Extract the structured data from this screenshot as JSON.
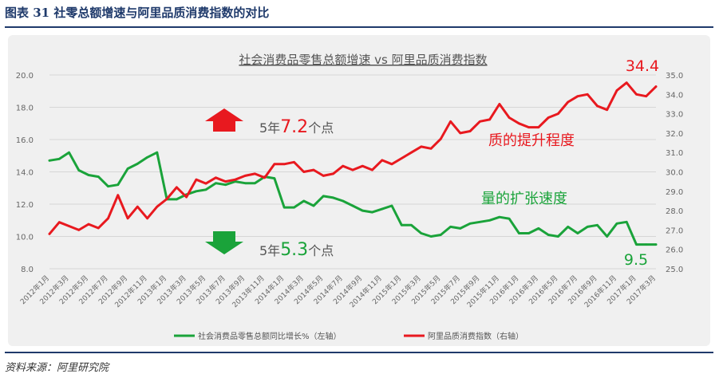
{
  "figure": {
    "title": "图表 31   社零总额增速与阿里品质消费指数的对比",
    "source": "资料来源：阿里研究院"
  },
  "chart_data": {
    "type": "line",
    "title": "社会消费品零售总额增速 vs 阿里品质消费指数",
    "x": [
      "2012年1月",
      "2012年2月",
      "2012年3月",
      "2012年4月",
      "2012年5月",
      "2012年6月",
      "2012年7月",
      "2012年8月",
      "2012年9月",
      "2012年10月",
      "2012年11月",
      "2012年12月",
      "2013年1月",
      "2013年2月",
      "2013年3月",
      "2013年4月",
      "2013年5月",
      "2013年6月",
      "2013年7月",
      "2013年8月",
      "2013年9月",
      "2013年10月",
      "2013年11月",
      "2013年12月",
      "2014年1月",
      "2014年2月",
      "2014年3月",
      "2014年4月",
      "2014年5月",
      "2014年6月",
      "2014年7月",
      "2014年8月",
      "2014年9月",
      "2014年10月",
      "2014年11月",
      "2014年12月",
      "2015年1月",
      "2015年2月",
      "2015年3月",
      "2015年4月",
      "2015年5月",
      "2015年6月",
      "2015年7月",
      "2015年8月",
      "2015年9月",
      "2015年10月",
      "2015年11月",
      "2015年12月",
      "2016年1月",
      "2016年2月",
      "2016年3月",
      "2016年4月",
      "2016年5月",
      "2016年6月",
      "2016年7月",
      "2016年8月",
      "2016年9月",
      "2016年10月",
      "2016年11月",
      "2016年12月",
      "2017年1月",
      "2017年2月",
      "2017年3月"
    ],
    "x_tick_labels": [
      "2012年1月",
      "2012年3月",
      "2012年5月",
      "2012年7月",
      "2012年9月",
      "2012年11月",
      "2013年1月",
      "2013年3月",
      "2013年5月",
      "2013年7月",
      "2013年9月",
      "2013年11月",
      "2014年1月",
      "2014年3月",
      "2014年5月",
      "2014年7月",
      "2014年9月",
      "2014年11月",
      "2015年1月",
      "2015年3月",
      "2015年5月",
      "2015年7月",
      "2015年9月",
      "2015年11月",
      "2016年1月",
      "2016年3月",
      "2016年5月",
      "2016年7月",
      "2016年9月",
      "2016年11月",
      "2017年1月",
      "2017年3月"
    ],
    "y_left": {
      "ylim": [
        8.0,
        20.0
      ],
      "ticks": [
        "8.0",
        "10.0",
        "12.0",
        "14.0",
        "16.0",
        "18.0",
        "20.0"
      ]
    },
    "y_right": {
      "ylim": [
        25.0,
        35.0
      ],
      "ticks": [
        "25.0",
        "26.0",
        "27.0",
        "28.0",
        "29.0",
        "30.0",
        "31.0",
        "32.0",
        "33.0",
        "34.0",
        "35.0"
      ]
    },
    "series": [
      {
        "name": "社会消费品零售总额同比增长%（左轴）",
        "axis": "left",
        "color": "#1aa33a",
        "values": [
          14.7,
          14.8,
          15.2,
          14.1,
          13.8,
          13.7,
          13.1,
          13.2,
          14.2,
          14.5,
          14.9,
          15.2,
          12.3,
          12.3,
          12.6,
          12.8,
          12.9,
          13.3,
          13.2,
          13.4,
          13.3,
          13.3,
          13.7,
          13.6,
          11.8,
          11.8,
          12.2,
          11.9,
          12.5,
          12.4,
          12.2,
          11.9,
          11.6,
          11.5,
          11.7,
          11.9,
          10.7,
          10.7,
          10.2,
          10.0,
          10.1,
          10.6,
          10.5,
          10.8,
          10.9,
          11.0,
          11.2,
          11.1,
          10.2,
          10.2,
          10.5,
          10.1,
          10.0,
          10.6,
          10.2,
          10.6,
          10.7,
          10.0,
          10.8,
          10.9,
          9.5,
          9.5,
          9.5
        ]
      },
      {
        "name": "阿里品质消费指数（右轴）",
        "axis": "right",
        "color": "#e8191f",
        "values": [
          26.8,
          27.4,
          27.2,
          27.0,
          27.3,
          27.1,
          27.6,
          28.8,
          27.6,
          28.2,
          27.6,
          28.2,
          28.6,
          29.2,
          28.7,
          29.6,
          29.4,
          29.7,
          29.5,
          29.6,
          29.8,
          29.9,
          29.7,
          30.4,
          30.4,
          30.5,
          30.0,
          30.1,
          29.8,
          29.9,
          30.3,
          30.1,
          30.3,
          30.1,
          30.6,
          30.4,
          30.7,
          31.0,
          31.3,
          31.2,
          31.7,
          32.6,
          32.0,
          32.1,
          32.6,
          32.7,
          33.5,
          32.8,
          32.5,
          32.3,
          32.3,
          32.8,
          33.0,
          33.6,
          33.9,
          34.0,
          33.4,
          33.2,
          34.2,
          34.6,
          34.0,
          33.9,
          34.4
        ]
      }
    ],
    "annotations": {
      "end_red": "34.4",
      "end_green": "9.5",
      "red_note": "质的提升程度",
      "green_note": "量的扩张速度",
      "up_prefix": "5年",
      "up_value": "7.2",
      "up_suffix": "个点",
      "down_prefix": "5年",
      "down_value": "5.3",
      "down_suffix": "个点"
    },
    "grid": true,
    "legend_position": "bottom"
  }
}
